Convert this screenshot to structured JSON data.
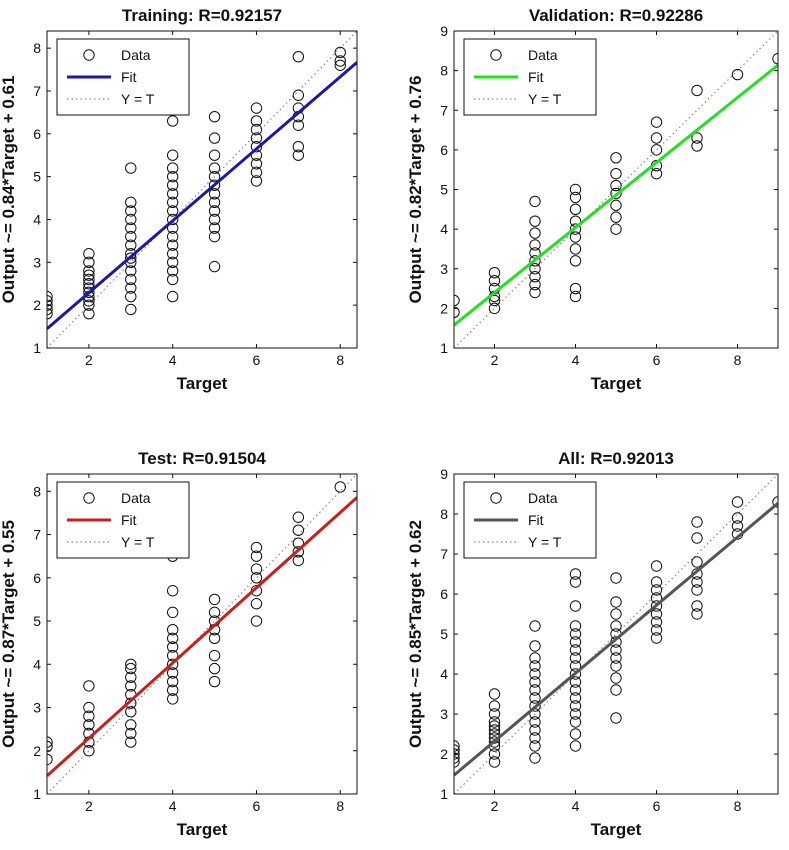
{
  "chart_data": [
    {
      "type": "scatter",
      "title": "Training: R=0.92157",
      "xlabel": "Target",
      "ylabel": "Output ~= 0.84*Target + 0.61",
      "xlim": [
        1,
        8.4
      ],
      "ylim": [
        1,
        8.4
      ],
      "xticks": [
        2,
        4,
        6,
        8
      ],
      "yticks": [
        1,
        2,
        3,
        4,
        5,
        6,
        7,
        8
      ],
      "fit": {
        "slope": 0.84,
        "intercept": 0.61,
        "color": "#1a1aa6"
      },
      "legend": {
        "position": "top-left",
        "entries": [
          "Data",
          "Fit",
          "Y = T"
        ]
      },
      "points": [
        [
          1,
          1.8
        ],
        [
          1,
          1.9
        ],
        [
          1,
          2.0
        ],
        [
          1,
          2.1
        ],
        [
          1,
          2.2
        ],
        [
          2,
          1.8
        ],
        [
          2,
          2.0
        ],
        [
          2,
          2.1
        ],
        [
          2,
          2.2
        ],
        [
          2,
          2.3
        ],
        [
          2,
          2.4
        ],
        [
          2,
          2.5
        ],
        [
          2,
          2.6
        ],
        [
          2,
          2.7
        ],
        [
          2,
          2.8
        ],
        [
          2,
          3.0
        ],
        [
          2,
          3.2
        ],
        [
          3,
          1.9
        ],
        [
          3,
          2.2
        ],
        [
          3,
          2.4
        ],
        [
          3,
          2.6
        ],
        [
          3,
          2.8
        ],
        [
          3,
          3.0
        ],
        [
          3,
          3.1
        ],
        [
          3,
          3.2
        ],
        [
          3,
          3.4
        ],
        [
          3,
          3.6
        ],
        [
          3,
          3.8
        ],
        [
          3,
          4.0
        ],
        [
          3,
          4.2
        ],
        [
          3,
          4.4
        ],
        [
          3,
          5.2
        ],
        [
          4,
          2.2
        ],
        [
          4,
          2.6
        ],
        [
          4,
          2.8
        ],
        [
          4,
          3.0
        ],
        [
          4,
          3.2
        ],
        [
          4,
          3.4
        ],
        [
          4,
          3.6
        ],
        [
          4,
          3.8
        ],
        [
          4,
          4.0
        ],
        [
          4,
          4.2
        ],
        [
          4,
          4.4
        ],
        [
          4,
          4.6
        ],
        [
          4,
          4.8
        ],
        [
          4,
          5.0
        ],
        [
          4,
          5.2
        ],
        [
          4,
          5.5
        ],
        [
          4,
          6.3
        ],
        [
          5,
          2.9
        ],
        [
          5,
          3.6
        ],
        [
          5,
          3.8
        ],
        [
          5,
          4.0
        ],
        [
          5,
          4.2
        ],
        [
          5,
          4.4
        ],
        [
          5,
          4.6
        ],
        [
          5,
          4.8
        ],
        [
          5,
          5.0
        ],
        [
          5,
          5.2
        ],
        [
          5,
          5.5
        ],
        [
          5,
          5.9
        ],
        [
          5,
          6.4
        ],
        [
          6,
          4.9
        ],
        [
          6,
          5.1
        ],
        [
          6,
          5.3
        ],
        [
          6,
          5.5
        ],
        [
          6,
          5.7
        ],
        [
          6,
          5.9
        ],
        [
          6,
          6.1
        ],
        [
          6,
          6.3
        ],
        [
          6,
          6.6
        ],
        [
          7,
          5.5
        ],
        [
          7,
          5.7
        ],
        [
          7,
          6.2
        ],
        [
          7,
          6.4
        ],
        [
          7,
          6.6
        ],
        [
          7,
          6.9
        ],
        [
          7,
          7.8
        ],
        [
          8,
          7.6
        ],
        [
          8,
          7.7
        ],
        [
          8,
          7.9
        ]
      ]
    },
    {
      "type": "scatter",
      "title": "Validation: R=0.92286",
      "xlabel": "Target",
      "ylabel": "Output ~= 0.82*Target + 0.76",
      "xlim": [
        1,
        9
      ],
      "ylim": [
        1,
        9
      ],
      "xticks": [
        2,
        4,
        6,
        8
      ],
      "yticks": [
        1,
        2,
        3,
        4,
        5,
        6,
        7,
        8,
        9
      ],
      "fit": {
        "slope": 0.82,
        "intercept": 0.76,
        "color": "#22e022"
      },
      "legend": {
        "position": "top-left",
        "entries": [
          "Data",
          "Fit",
          "Y = T"
        ]
      },
      "points": [
        [
          1,
          1.9
        ],
        [
          1,
          2.2
        ],
        [
          2,
          2.0
        ],
        [
          2,
          2.2
        ],
        [
          2,
          2.3
        ],
        [
          2,
          2.5
        ],
        [
          2,
          2.7
        ],
        [
          2,
          2.9
        ],
        [
          3,
          2.4
        ],
        [
          3,
          2.6
        ],
        [
          3,
          2.8
        ],
        [
          3,
          3.0
        ],
        [
          3,
          3.2
        ],
        [
          3,
          3.4
        ],
        [
          3,
          3.6
        ],
        [
          3,
          3.9
        ],
        [
          3,
          4.2
        ],
        [
          3,
          4.7
        ],
        [
          4,
          2.3
        ],
        [
          4,
          2.5
        ],
        [
          4,
          3.2
        ],
        [
          4,
          3.5
        ],
        [
          4,
          3.8
        ],
        [
          4,
          4.0
        ],
        [
          4,
          4.2
        ],
        [
          4,
          4.5
        ],
        [
          4,
          4.8
        ],
        [
          4,
          5.0
        ],
        [
          5,
          4.0
        ],
        [
          5,
          4.3
        ],
        [
          5,
          4.6
        ],
        [
          5,
          4.9
        ],
        [
          5,
          5.1
        ],
        [
          5,
          5.4
        ],
        [
          5,
          5.8
        ],
        [
          6,
          5.4
        ],
        [
          6,
          5.6
        ],
        [
          6,
          6.0
        ],
        [
          6,
          6.3
        ],
        [
          6,
          6.7
        ],
        [
          7,
          6.1
        ],
        [
          7,
          6.3
        ],
        [
          7,
          7.5
        ],
        [
          8,
          7.9
        ],
        [
          9,
          8.3
        ]
      ]
    },
    {
      "type": "scatter",
      "title": "Test: R=0.91504",
      "xlabel": "Target",
      "ylabel": "Output ~= 0.87*Target + 0.55",
      "xlim": [
        1,
        8.4
      ],
      "ylim": [
        1,
        8.4
      ],
      "xticks": [
        2,
        4,
        6,
        8
      ],
      "yticks": [
        1,
        2,
        3,
        4,
        5,
        6,
        7,
        8
      ],
      "fit": {
        "slope": 0.87,
        "intercept": 0.55,
        "color": "#c81e1e"
      },
      "legend": {
        "position": "top-left",
        "entries": [
          "Data",
          "Fit",
          "Y = T"
        ]
      },
      "points": [
        [
          1,
          1.8
        ],
        [
          1,
          2.1
        ],
        [
          1,
          2.2
        ],
        [
          2,
          2.0
        ],
        [
          2,
          2.2
        ],
        [
          2,
          2.4
        ],
        [
          2,
          2.6
        ],
        [
          2,
          2.8
        ],
        [
          2,
          3.0
        ],
        [
          2,
          3.5
        ],
        [
          3,
          2.2
        ],
        [
          3,
          2.4
        ],
        [
          3,
          2.6
        ],
        [
          3,
          2.9
        ],
        [
          3,
          3.1
        ],
        [
          3,
          3.3
        ],
        [
          3,
          3.5
        ],
        [
          3,
          3.7
        ],
        [
          3,
          3.9
        ],
        [
          3,
          4.0
        ],
        [
          4,
          3.2
        ],
        [
          4,
          3.4
        ],
        [
          4,
          3.6
        ],
        [
          4,
          3.8
        ],
        [
          4,
          4.0
        ],
        [
          4,
          4.2
        ],
        [
          4,
          4.4
        ],
        [
          4,
          4.6
        ],
        [
          4,
          4.8
        ],
        [
          4,
          5.2
        ],
        [
          4,
          5.7
        ],
        [
          4,
          6.5
        ],
        [
          5,
          3.6
        ],
        [
          5,
          3.9
        ],
        [
          5,
          4.2
        ],
        [
          5,
          4.6
        ],
        [
          5,
          4.8
        ],
        [
          5,
          5.0
        ],
        [
          5,
          5.2
        ],
        [
          5,
          5.5
        ],
        [
          6,
          5.0
        ],
        [
          6,
          5.4
        ],
        [
          6,
          5.7
        ],
        [
          6,
          6.0
        ],
        [
          6,
          6.2
        ],
        [
          6,
          6.5
        ],
        [
          6,
          6.7
        ],
        [
          7,
          6.4
        ],
        [
          7,
          6.6
        ],
        [
          7,
          6.8
        ],
        [
          7,
          7.1
        ],
        [
          7,
          7.4
        ],
        [
          8,
          8.1
        ]
      ]
    },
    {
      "type": "scatter",
      "title": "All: R=0.92013",
      "xlabel": "Target",
      "ylabel": "Output ~= 0.85*Target + 0.62",
      "xlim": [
        1,
        9
      ],
      "ylim": [
        1,
        9
      ],
      "xticks": [
        2,
        4,
        6,
        8
      ],
      "yticks": [
        1,
        2,
        3,
        4,
        5,
        6,
        7,
        8,
        9
      ],
      "fit": {
        "slope": 0.85,
        "intercept": 0.62,
        "color": "#555555"
      },
      "legend": {
        "position": "top-left",
        "entries": [
          "Data",
          "Fit",
          "Y = T"
        ]
      },
      "points": [
        [
          1,
          1.8
        ],
        [
          1,
          1.9
        ],
        [
          1,
          2.0
        ],
        [
          1,
          2.1
        ],
        [
          1,
          2.2
        ],
        [
          2,
          1.8
        ],
        [
          2,
          2.0
        ],
        [
          2,
          2.2
        ],
        [
          2,
          2.3
        ],
        [
          2,
          2.4
        ],
        [
          2,
          2.5
        ],
        [
          2,
          2.6
        ],
        [
          2,
          2.7
        ],
        [
          2,
          2.8
        ],
        [
          2,
          3.0
        ],
        [
          2,
          3.2
        ],
        [
          2,
          3.5
        ],
        [
          3,
          1.9
        ],
        [
          3,
          2.2
        ],
        [
          3,
          2.4
        ],
        [
          3,
          2.6
        ],
        [
          3,
          2.8
        ],
        [
          3,
          3.0
        ],
        [
          3,
          3.2
        ],
        [
          3,
          3.4
        ],
        [
          3,
          3.6
        ],
        [
          3,
          3.8
        ],
        [
          3,
          4.0
        ],
        [
          3,
          4.2
        ],
        [
          3,
          4.4
        ],
        [
          3,
          4.7
        ],
        [
          3,
          5.2
        ],
        [
          4,
          2.2
        ],
        [
          4,
          2.5
        ],
        [
          4,
          2.8
        ],
        [
          4,
          3.0
        ],
        [
          4,
          3.2
        ],
        [
          4,
          3.4
        ],
        [
          4,
          3.6
        ],
        [
          4,
          3.8
        ],
        [
          4,
          4.0
        ],
        [
          4,
          4.2
        ],
        [
          4,
          4.4
        ],
        [
          4,
          4.6
        ],
        [
          4,
          4.8
        ],
        [
          4,
          5.0
        ],
        [
          4,
          5.2
        ],
        [
          4,
          5.7
        ],
        [
          4,
          6.3
        ],
        [
          4,
          6.5
        ],
        [
          5,
          2.9
        ],
        [
          5,
          3.6
        ],
        [
          5,
          3.9
        ],
        [
          5,
          4.2
        ],
        [
          5,
          4.4
        ],
        [
          5,
          4.6
        ],
        [
          5,
          4.8
        ],
        [
          5,
          5.0
        ],
        [
          5,
          5.2
        ],
        [
          5,
          5.5
        ],
        [
          5,
          5.8
        ],
        [
          5,
          6.4
        ],
        [
          6,
          4.9
        ],
        [
          6,
          5.1
        ],
        [
          6,
          5.3
        ],
        [
          6,
          5.5
        ],
        [
          6,
          5.7
        ],
        [
          6,
          5.9
        ],
        [
          6,
          6.1
        ],
        [
          6,
          6.3
        ],
        [
          6,
          6.7
        ],
        [
          7,
          5.5
        ],
        [
          7,
          5.7
        ],
        [
          7,
          6.1
        ],
        [
          7,
          6.3
        ],
        [
          7,
          6.5
        ],
        [
          7,
          6.8
        ],
        [
          7,
          7.4
        ],
        [
          7,
          7.8
        ],
        [
          8,
          7.5
        ],
        [
          8,
          7.7
        ],
        [
          8,
          7.9
        ],
        [
          8,
          8.3
        ],
        [
          9,
          8.3
        ]
      ]
    }
  ]
}
